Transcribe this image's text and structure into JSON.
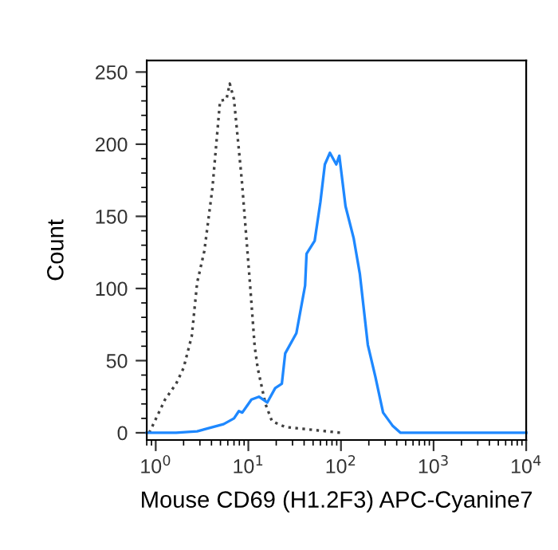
{
  "chart_data": {
    "type": "line",
    "xlabel": "Mouse CD69 (H1.2F3) APC-Cyanine7",
    "ylabel": "Count",
    "log": "x",
    "xlim": [
      0.8,
      10000
    ],
    "xticks": [
      {
        "value": 1,
        "label": "10$^{0}$"
      },
      {
        "value": 10,
        "label": "10$^{1}$"
      },
      {
        "value": 100,
        "label": "10$^{2}$"
      },
      {
        "value": 1000,
        "label": "10$^{3}$"
      },
      {
        "value": 10000,
        "label": "10$^{4}$"
      }
    ],
    "ylim": [
      -5,
      258
    ],
    "yticks": [
      0,
      50,
      100,
      150,
      200,
      250
    ],
    "grid": false,
    "legend": false,
    "marker": "none",
    "series": [
      {
        "color": "#404040",
        "line_style": "dotted",
        "x": [
          0.85,
          1.1,
          1.26,
          1.66,
          2.0,
          2.45,
          2.8,
          3.35,
          3.9,
          4.1,
          4.95,
          5.8,
          6.3,
          7.0,
          8.5,
          10.4,
          11.7,
          12.6,
          15.3,
          18,
          25,
          50,
          100
        ],
        "values": [
          0,
          15,
          23,
          34,
          45,
          67,
          104,
          126,
          159,
          170,
          230,
          231,
          242,
          231,
          175,
          104,
          60,
          45,
          20,
          8,
          4,
          2,
          0
        ]
      },
      {
        "color": "#1e88ff",
        "line_style": "solid",
        "x": [
          0.8,
          1.66,
          2.8,
          5.4,
          7,
          7.9,
          8.6,
          10.8,
          13,
          16,
          19.5,
          23,
          25,
          33,
          41,
          42.5,
          52,
          60,
          67,
          76,
          89,
          96,
          112,
          137,
          160,
          195,
          235,
          285,
          360,
          440,
          10000
        ],
        "values": [
          0,
          0,
          1,
          6,
          10,
          15,
          14,
          23,
          25,
          21,
          31,
          34,
          55,
          69,
          102,
          124,
          133,
          160,
          186,
          194,
          186,
          192,
          157,
          135,
          110,
          61,
          39,
          14,
          5,
          0,
          0
        ]
      }
    ]
  }
}
